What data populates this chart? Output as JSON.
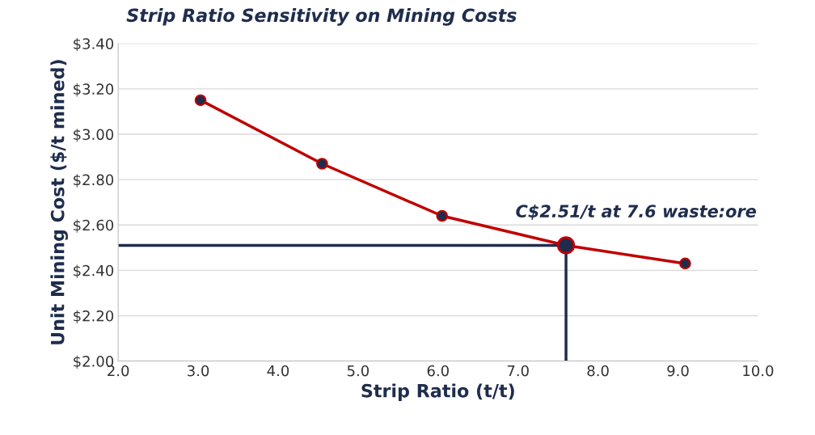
{
  "chart_data": {
    "type": "line",
    "title": "Strip Ratio Sensitivity on Mining Costs",
    "xlabel": "Strip Ratio (t/t)",
    "ylabel": "Unit Mining Cost ($/t mined)",
    "series": [
      {
        "color": "#c00000",
        "marker": "circle",
        "x": [
          3.03,
          4.55,
          6.05,
          7.6,
          9.09
        ],
        "values": [
          3.15,
          2.87,
          2.64,
          2.51,
          2.43
        ]
      },
      {
        "color": "#1f2d4d",
        "marker": "none",
        "x": [
          2.0,
          7.6,
          7.6
        ],
        "values": [
          2.51,
          2.51,
          2.0
        ]
      }
    ],
    "annotations": [
      {
        "text": "C$2.51/t at 7.6 waste:ore",
        "x": 7.6,
        "y": 2.51
      }
    ],
    "xlim": [
      2.0,
      10.0
    ],
    "xticks": [
      {
        "value": 2,
        "label": "2.0"
      },
      {
        "value": 3,
        "label": "3.0"
      },
      {
        "value": 4,
        "label": "4.0"
      },
      {
        "value": 5,
        "label": "5.0"
      },
      {
        "value": 6,
        "label": "6.0"
      },
      {
        "value": 7,
        "label": "7.0"
      },
      {
        "value": 8,
        "label": "8.0"
      },
      {
        "value": 9,
        "label": "9.0"
      },
      {
        "value": 10,
        "label": "10.0"
      }
    ],
    "ylim": [
      2.0,
      3.4
    ],
    "yticks": [
      {
        "value": 2.0,
        "label": "$2.00"
      },
      {
        "value": 2.2,
        "label": "$2.20"
      },
      {
        "value": 2.4,
        "label": "$2.40"
      },
      {
        "value": 2.6,
        "label": "$2.60"
      },
      {
        "value": 2.8,
        "label": "$2.80"
      },
      {
        "value": 3.0,
        "label": "$3.00"
      },
      {
        "value": 3.2,
        "label": "$3.20"
      },
      {
        "value": 3.4,
        "label": "$3.40"
      }
    ],
    "grid": "y",
    "legend": false
  }
}
